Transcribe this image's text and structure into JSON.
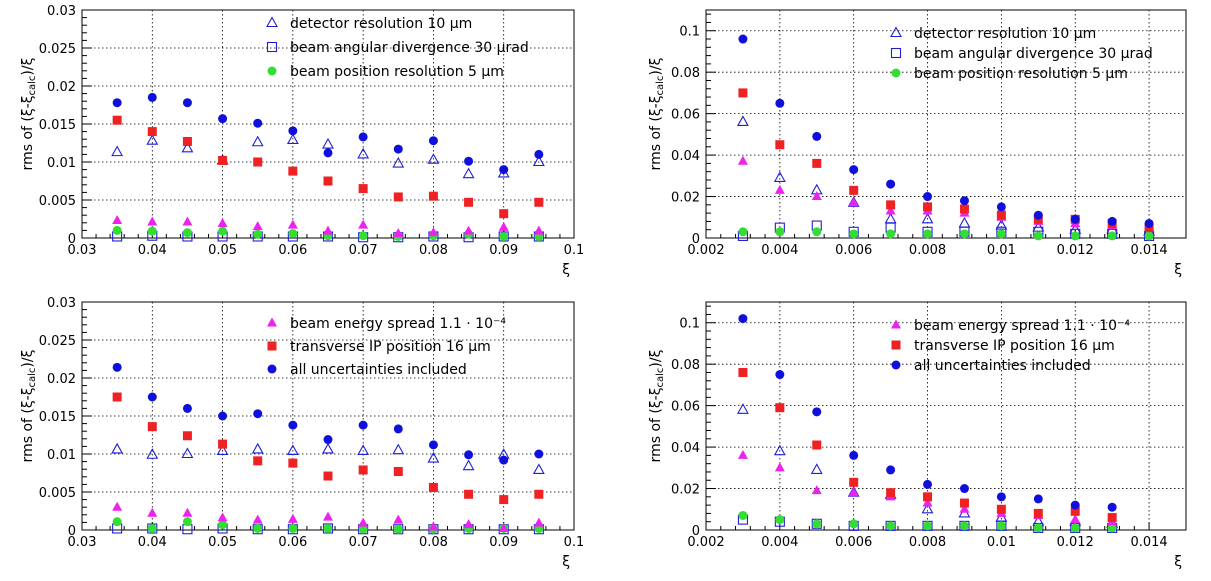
{
  "styles": {
    "detector": {
      "marker": "open-triangle",
      "color": "#1f1fd6"
    },
    "angular": {
      "marker": "open-square",
      "color": "#1f1fd6"
    },
    "position": {
      "marker": "filled-circle",
      "color": "#33dd33"
    },
    "energy": {
      "marker": "filled-triangle",
      "color": "#ee22ee"
    },
    "ip": {
      "marker": "filled-square",
      "color": "#ee2222"
    },
    "all": {
      "marker": "filled-circle",
      "color": "#1010dd"
    }
  },
  "chart_data": [
    {
      "type": "scatter",
      "xlabel": "ξ",
      "ylabel": "rms of (ξ-ξcalc)/ξ",
      "xlim": [
        0.03,
        0.1
      ],
      "ylim": [
        0,
        0.03
      ],
      "xticks": [
        "0.03",
        "0.04",
        "0.05",
        "0.06",
        "0.07",
        "0.08",
        "0.09",
        "0.1"
      ],
      "yticks": [
        "0",
        "0.005",
        "0.01",
        "0.015",
        "0.02",
        "0.025",
        "0.03"
      ],
      "grid": true,
      "legend": [
        {
          "style": "detector",
          "label": "detector resolution 10 μm"
        },
        {
          "style": "angular",
          "label": "beam angular divergence 30 μrad"
        },
        {
          "style": "position",
          "label": "beam position resolution 5 μm"
        }
      ],
      "series": [
        {
          "style": "detector",
          "x": [
            0.035,
            0.04,
            0.045,
            0.05,
            0.055,
            0.06,
            0.065,
            0.07,
            0.075,
            0.08,
            0.085,
            0.09,
            0.095
          ],
          "y": [
            0.0113,
            0.0128,
            0.0118,
            0.0102,
            0.0126,
            0.0129,
            0.0123,
            0.011,
            0.0098,
            0.0103,
            0.0084,
            0.0085,
            0.01
          ]
        },
        {
          "style": "angular",
          "x": [
            0.035,
            0.04,
            0.045,
            0.05,
            0.055,
            0.06,
            0.065,
            0.07,
            0.075,
            0.08,
            0.085,
            0.09,
            0.095
          ],
          "y": [
            0.0002,
            0.0003,
            0.0002,
            0.0002,
            0.0002,
            0.0002,
            0.0002,
            0.0001,
            0.0001,
            0.0002,
            0.0001,
            0.0002,
            0.0002
          ]
        },
        {
          "style": "position",
          "x": [
            0.035,
            0.04,
            0.045,
            0.05,
            0.055,
            0.06,
            0.065,
            0.07,
            0.075,
            0.08,
            0.085,
            0.09,
            0.095
          ],
          "y": [
            0.001,
            0.0009,
            0.0007,
            0.0009,
            0.0005,
            0.0006,
            0.0003,
            0.0003,
            0.0002,
            0.0003,
            0.0005,
            0.0002,
            0.0002
          ]
        },
        {
          "style": "energy",
          "x": [
            0.035,
            0.04,
            0.045,
            0.05,
            0.055,
            0.06,
            0.065,
            0.07,
            0.075,
            0.08,
            0.085,
            0.09,
            0.095
          ],
          "y": [
            0.0023,
            0.0021,
            0.0021,
            0.0019,
            0.0015,
            0.0017,
            0.0009,
            0.0017,
            0.0006,
            0.0007,
            0.0009,
            0.0014,
            0.0009
          ]
        },
        {
          "style": "ip",
          "x": [
            0.035,
            0.04,
            0.045,
            0.05,
            0.055,
            0.06,
            0.065,
            0.07,
            0.075,
            0.08,
            0.085,
            0.09,
            0.095
          ],
          "y": [
            0.0155,
            0.014,
            0.0127,
            0.0102,
            0.01,
            0.0088,
            0.0075,
            0.0065,
            0.0054,
            0.0055,
            0.0047,
            0.0032,
            0.0047
          ]
        },
        {
          "style": "all",
          "x": [
            0.035,
            0.04,
            0.045,
            0.05,
            0.055,
            0.06,
            0.065,
            0.07,
            0.075,
            0.08,
            0.085,
            0.09,
            0.095
          ],
          "y": [
            0.0178,
            0.0185,
            0.0178,
            0.0157,
            0.0151,
            0.0141,
            0.0112,
            0.0133,
            0.0117,
            0.0128,
            0.0101,
            0.009,
            0.011
          ]
        }
      ]
    },
    {
      "type": "scatter",
      "xlabel": "ξ",
      "ylabel": "rms of (ξ-ξcalc)/ξ",
      "xlim": [
        0.002,
        0.015
      ],
      "ylim": [
        0,
        0.11
      ],
      "xticks": [
        "0.002",
        "0.004",
        "0.006",
        "0.008",
        "0.01",
        "0.012",
        "0.014"
      ],
      "yticks": [
        "0",
        "0.02",
        "0.04",
        "0.06",
        "0.08",
        "0.1"
      ],
      "grid": true,
      "legend": [
        {
          "style": "detector",
          "label": "detector resolution 10 μm"
        },
        {
          "style": "angular",
          "label": "beam angular divergence 30 μrad"
        },
        {
          "style": "position",
          "label": "beam position resolution 5 μm"
        }
      ],
      "series": [
        {
          "style": "detector",
          "x": [
            0.003,
            0.004,
            0.005,
            0.006,
            0.007,
            0.008,
            0.009,
            0.01,
            0.011,
            0.012,
            0.013,
            0.014
          ],
          "y": [
            0.056,
            0.029,
            0.023,
            0.017,
            0.009,
            0.009,
            0.007,
            0.006,
            0.005,
            0.004,
            0.004,
            0.003
          ]
        },
        {
          "style": "angular",
          "x": [
            0.003,
            0.004,
            0.005,
            0.006,
            0.007,
            0.008,
            0.009,
            0.01,
            0.011,
            0.012,
            0.013,
            0.014
          ],
          "y": [
            0.001,
            0.005,
            0.006,
            0.003,
            0.005,
            0.003,
            0.003,
            0.003,
            0.003,
            0.002,
            0.002,
            0.001
          ]
        },
        {
          "style": "position",
          "x": [
            0.003,
            0.004,
            0.005,
            0.006,
            0.007,
            0.008,
            0.009,
            0.01,
            0.011,
            0.012,
            0.013,
            0.014
          ],
          "y": [
            0.003,
            0.003,
            0.003,
            0.002,
            0.002,
            0.002,
            0.002,
            0.002,
            0.001,
            0.001,
            0.001,
            0.001
          ]
        },
        {
          "style": "energy",
          "x": [
            0.003,
            0.004,
            0.005,
            0.006,
            0.007,
            0.008,
            0.009,
            0.01,
            0.011,
            0.012,
            0.013,
            0.014
          ],
          "y": [
            0.037,
            0.023,
            0.02,
            0.017,
            0.013,
            0.013,
            0.012,
            0.01,
            0.008,
            0.007,
            0.006,
            0.005
          ]
        },
        {
          "style": "ip",
          "x": [
            0.003,
            0.004,
            0.005,
            0.006,
            0.007,
            0.008,
            0.009,
            0.01,
            0.011,
            0.012,
            0.013,
            0.014
          ],
          "y": [
            0.07,
            0.045,
            0.036,
            0.023,
            0.016,
            0.015,
            0.014,
            0.011,
            0.009,
            0.009,
            0.007,
            0.005
          ]
        },
        {
          "style": "all",
          "x": [
            0.003,
            0.004,
            0.005,
            0.006,
            0.007,
            0.008,
            0.009,
            0.01,
            0.011,
            0.012,
            0.013,
            0.014
          ],
          "y": [
            0.096,
            0.065,
            0.049,
            0.033,
            0.026,
            0.02,
            0.018,
            0.015,
            0.011,
            0.009,
            0.008,
            0.007
          ]
        }
      ]
    },
    {
      "type": "scatter",
      "xlabel": "ξ",
      "ylabel": "rms of (ξ-ξcalc)/ξ",
      "xlim": [
        0.03,
        0.1
      ],
      "ylim": [
        0,
        0.03
      ],
      "xticks": [
        "0.03",
        "0.04",
        "0.05",
        "0.06",
        "0.07",
        "0.08",
        "0.09",
        "0.1"
      ],
      "yticks": [
        "0",
        "0.005",
        "0.01",
        "0.015",
        "0.02",
        "0.025",
        "0.03"
      ],
      "grid": true,
      "legend": [
        {
          "style": "energy",
          "label": "beam energy spread 1.1 · 10⁻⁴"
        },
        {
          "style": "ip",
          "label": "transverse IP position 16 μm"
        },
        {
          "style": "all",
          "label": "all uncertainties included"
        }
      ],
      "series": [
        {
          "style": "detector",
          "x": [
            0.035,
            0.04,
            0.045,
            0.05,
            0.055,
            0.06,
            0.065,
            0.07,
            0.075,
            0.08,
            0.085,
            0.09,
            0.095
          ],
          "y": [
            0.0106,
            0.0099,
            0.01,
            0.0104,
            0.0106,
            0.0104,
            0.0106,
            0.0104,
            0.0105,
            0.0094,
            0.0084,
            0.0099,
            0.0079
          ]
        },
        {
          "style": "angular",
          "x": [
            0.035,
            0.04,
            0.045,
            0.05,
            0.055,
            0.06,
            0.065,
            0.07,
            0.075,
            0.08,
            0.085,
            0.09,
            0.095
          ],
          "y": [
            0.0002,
            0.0002,
            0.0001,
            0.0002,
            0.0001,
            0.0001,
            0.0002,
            0.0001,
            0.0001,
            0.0001,
            0.0001,
            0.0001,
            0.0001
          ]
        },
        {
          "style": "position",
          "x": [
            0.035,
            0.04,
            0.045,
            0.05,
            0.055,
            0.06,
            0.065,
            0.07,
            0.075,
            0.08,
            0.085,
            0.09,
            0.095
          ],
          "y": [
            0.0011,
            0.0002,
            0.0011,
            0.0007,
            0.0002,
            0.0002,
            0.0002,
            0.0001,
            0.0001,
            0.0001,
            0.0002,
            0.0002,
            0.0002
          ]
        },
        {
          "style": "energy",
          "x": [
            0.035,
            0.04,
            0.045,
            0.05,
            0.055,
            0.06,
            0.065,
            0.07,
            0.075,
            0.08,
            0.085,
            0.09,
            0.095
          ],
          "y": [
            0.003,
            0.0022,
            0.0022,
            0.0016,
            0.0013,
            0.0014,
            0.0017,
            0.0009,
            0.0013,
            0.0004,
            0.0007,
            0.0002,
            0.0009
          ]
        },
        {
          "style": "ip",
          "x": [
            0.035,
            0.04,
            0.045,
            0.05,
            0.055,
            0.06,
            0.065,
            0.07,
            0.075,
            0.08,
            0.085,
            0.09,
            0.095
          ],
          "y": [
            0.0175,
            0.0136,
            0.0124,
            0.0113,
            0.0091,
            0.0088,
            0.0071,
            0.0079,
            0.0077,
            0.0056,
            0.0047,
            0.004,
            0.0047
          ]
        },
        {
          "style": "all",
          "x": [
            0.035,
            0.04,
            0.045,
            0.05,
            0.055,
            0.06,
            0.065,
            0.07,
            0.075,
            0.08,
            0.085,
            0.09,
            0.095
          ],
          "y": [
            0.0214,
            0.0175,
            0.016,
            0.015,
            0.0153,
            0.0138,
            0.0119,
            0.0138,
            0.0133,
            0.0112,
            0.0099,
            0.0092,
            0.01
          ]
        }
      ]
    },
    {
      "type": "scatter",
      "xlabel": "ξ",
      "ylabel": "rms of (ξ-ξcalc)/ξ",
      "xlim": [
        0.002,
        0.015
      ],
      "ylim": [
        0,
        0.11
      ],
      "xticks": [
        "0.002",
        "0.004",
        "0.006",
        "0.008",
        "0.01",
        "0.012",
        "0.014"
      ],
      "yticks": [
        "0",
        "0.02",
        "0.04",
        "0.06",
        "0.08",
        "0.1"
      ],
      "grid": true,
      "legend": [
        {
          "style": "energy",
          "label": "beam energy spread 1.1 · 10⁻⁴"
        },
        {
          "style": "ip",
          "label": "transverse IP position 16 μm"
        },
        {
          "style": "all",
          "label": "all uncertainties included"
        }
      ],
      "series": [
        {
          "style": "detector",
          "x": [
            0.003,
            0.004,
            0.005,
            0.006,
            0.007,
            0.008,
            0.009,
            0.01,
            0.011,
            0.012,
            0.013
          ],
          "y": [
            0.058,
            0.038,
            0.029,
            0.018,
            0.017,
            0.01,
            0.008,
            0.006,
            0.004,
            0.004,
            0.003
          ]
        },
        {
          "style": "angular",
          "x": [
            0.003,
            0.004,
            0.005,
            0.006,
            0.007,
            0.008,
            0.009,
            0.01,
            0.011,
            0.012,
            0.013
          ],
          "y": [
            0.005,
            0.004,
            0.003,
            0.002,
            0.002,
            0.002,
            0.002,
            0.002,
            0.001,
            0.001,
            0.001
          ]
        },
        {
          "style": "position",
          "x": [
            0.003,
            0.004,
            0.005,
            0.006,
            0.007,
            0.008,
            0.009,
            0.01,
            0.011,
            0.012,
            0.013
          ],
          "y": [
            0.007,
            0.005,
            0.003,
            0.003,
            0.002,
            0.002,
            0.002,
            0.002,
            0.001,
            0.001,
            0.001
          ]
        },
        {
          "style": "energy",
          "x": [
            0.003,
            0.004,
            0.005,
            0.006,
            0.007,
            0.008,
            0.009,
            0.01,
            0.011,
            0.012,
            0.013
          ],
          "y": [
            0.036,
            0.03,
            0.019,
            0.018,
            0.016,
            0.013,
            0.01,
            0.008,
            0.007,
            0.005,
            0.004
          ]
        },
        {
          "style": "ip",
          "x": [
            0.003,
            0.004,
            0.005,
            0.006,
            0.007,
            0.008,
            0.009,
            0.01,
            0.011,
            0.012,
            0.013
          ],
          "y": [
            0.076,
            0.059,
            0.041,
            0.023,
            0.018,
            0.016,
            0.013,
            0.01,
            0.008,
            0.009,
            0.006
          ]
        },
        {
          "style": "all",
          "x": [
            0.003,
            0.004,
            0.005,
            0.006,
            0.007,
            0.008,
            0.009,
            0.01,
            0.011,
            0.012,
            0.013
          ],
          "y": [
            0.102,
            0.075,
            0.057,
            0.036,
            0.029,
            0.022,
            0.02,
            0.016,
            0.015,
            0.012,
            0.011
          ]
        }
      ]
    }
  ]
}
